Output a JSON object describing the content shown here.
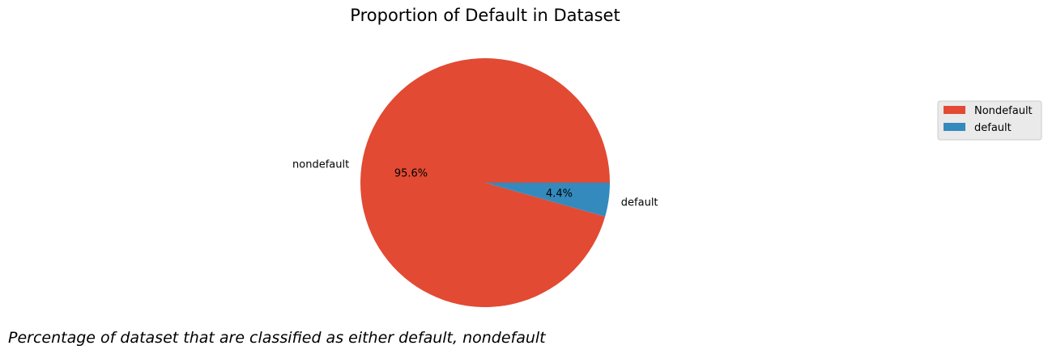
{
  "chart_data": {
    "type": "pie",
    "title": "Proportion of Default in Dataset",
    "caption": "Percentage of dataset that are classified as either default, nondefault",
    "slices": [
      {
        "label": "nondefault",
        "legend": "Nondefault",
        "value": 95.6,
        "pct_text": "95.6%",
        "color": "#E24A33"
      },
      {
        "label": "default",
        "legend": "default",
        "value": 4.4,
        "pct_text": "4.4%",
        "color": "#348ABD"
      }
    ],
    "start_angle_deg": 0,
    "direction": "counterclockwise",
    "legend_position": "right"
  }
}
